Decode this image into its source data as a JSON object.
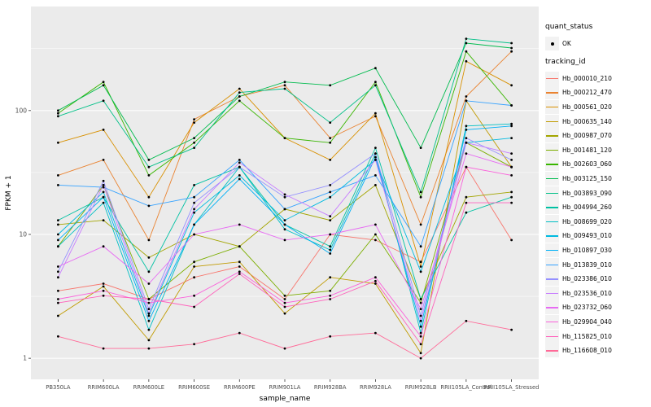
{
  "colors": {
    "panel_bg": "#EBEBEB",
    "grid": "#FFFFFF",
    "point": "#000000",
    "legend_key_bg": "#F2F2F2",
    "tick_label": "#4D4D4D",
    "tick_mark": "#333333"
  },
  "chart_data": {
    "type": "line",
    "title": "",
    "xlabel": "sample_name",
    "ylabel": "FPKM + 1",
    "y_scale": "log10",
    "y_ticks": [
      1,
      10,
      100
    ],
    "y_tick_labels": [
      "1",
      "10",
      "100"
    ],
    "y_minor_ticks_log": [
      0.5,
      1.5,
      2.5
    ],
    "ylim_log": [
      -0.17,
      2.84
    ],
    "grid": true,
    "legend_position": "right",
    "categories": [
      "PB350LA",
      "RRIM600LA",
      "RRIM600LE",
      "RRIM600SE",
      "RRIM600PE",
      "RRIM901LA",
      "RRIM928BA",
      "RRIM928LA",
      "RRIM928LB",
      "RRII105LA_Control",
      "RRII105LA_Stressed"
    ],
    "legend": {
      "quant_status_title": "quant_status",
      "quant_status_items": [
        {
          "label": "OK"
        }
      ],
      "tracking_title": "tracking_id"
    },
    "series": [
      {
        "name": "Hb_000010_210",
        "color": "#F8766D",
        "values": [
          3.5,
          4,
          3,
          4.5,
          5.5,
          3,
          10,
          9,
          6,
          35,
          9
        ]
      },
      {
        "name": "Hb_000212_470",
        "color": "#EA8331",
        "values": [
          30,
          40,
          9,
          85,
          130,
          160,
          60,
          90,
          12,
          130,
          300
        ]
      },
      {
        "name": "Hb_000561_020",
        "color": "#D89000",
        "values": [
          55,
          70,
          20,
          80,
          150,
          60,
          40,
          95,
          5.5,
          250,
          160
        ]
      },
      {
        "name": "Hb_000635_140",
        "color": "#C09B00",
        "values": [
          2.2,
          3.8,
          1.4,
          5.5,
          6,
          2.3,
          4.5,
          4,
          1.1,
          120,
          35
        ]
      },
      {
        "name": "Hb_000987_070",
        "color": "#A3A500",
        "values": [
          12,
          13,
          6.5,
          10,
          8,
          16,
          13,
          25,
          3,
          20,
          22
        ]
      },
      {
        "name": "Hb_001481_120",
        "color": "#7CAE00",
        "values": [
          8,
          25,
          3,
          6,
          8,
          3.2,
          3.5,
          10,
          2.8,
          55,
          35
        ]
      },
      {
        "name": "Hb_002603_060",
        "color": "#39B600",
        "values": [
          95,
          170,
          30,
          55,
          120,
          60,
          55,
          170,
          20,
          300,
          110
        ]
      },
      {
        "name": "Hb_003125_150",
        "color": "#00BB4E",
        "values": [
          100,
          160,
          40,
          60,
          130,
          170,
          160,
          220,
          50,
          350,
          320
        ]
      },
      {
        "name": "Hb_003893_090",
        "color": "#00C087",
        "values": [
          90,
          120,
          35,
          50,
          140,
          150,
          80,
          160,
          22,
          380,
          350
        ]
      },
      {
        "name": "Hb_004994_260",
        "color": "#00C1A3",
        "values": [
          13,
          20,
          5,
          25,
          35,
          12,
          8,
          50,
          3,
          15,
          20
        ]
      },
      {
        "name": "Hb_008699_020",
        "color": "#00BFC4",
        "values": [
          8,
          18,
          1.7,
          12,
          35,
          11,
          7.5,
          45,
          1.6,
          75,
          78
        ]
      },
      {
        "name": "Hb_009493_010",
        "color": "#00BAE0",
        "values": [
          10,
          22,
          2.2,
          15,
          30,
          13,
          20,
          40,
          5,
          55,
          60
        ]
      },
      {
        "name": "Hb_010897_030",
        "color": "#00B0F6",
        "values": [
          9,
          20,
          2.0,
          12,
          28,
          12,
          7,
          42,
          1.8,
          70,
          75
        ]
      },
      {
        "name": "Hb_013839_010",
        "color": "#35A2FF",
        "values": [
          25,
          24,
          17,
          20,
          40,
          16,
          22,
          30,
          8,
          120,
          110
        ]
      },
      {
        "name": "Hb_023386_010",
        "color": "#9590FF",
        "values": [
          5,
          27,
          2.5,
          18,
          35,
          20,
          25,
          45,
          2.2,
          60,
          40
        ]
      },
      {
        "name": "Hb_023536_010",
        "color": "#C77CFF",
        "values": [
          4.5,
          25,
          2.3,
          16,
          38,
          21,
          14,
          40,
          2.0,
          55,
          45
        ]
      },
      {
        "name": "Hb_023732_060",
        "color": "#E76BF3",
        "values": [
          5.5,
          8,
          4,
          10,
          12,
          9,
          10,
          12,
          2.5,
          45,
          35
        ]
      },
      {
        "name": "Hb_029904_040",
        "color": "#FA62DB",
        "values": [
          3,
          3.5,
          2.8,
          3.2,
          5,
          2.8,
          3.2,
          4.5,
          1.5,
          35,
          30
        ]
      },
      {
        "name": "Hb_115825_010",
        "color": "#FF62BC",
        "values": [
          2.8,
          3.2,
          3.0,
          2.6,
          4.8,
          2.6,
          3.0,
          4.2,
          1.3,
          18,
          18
        ]
      },
      {
        "name": "Hb_116608_010",
        "color": "#FF6A98",
        "values": [
          1.5,
          1.2,
          1.2,
          1.3,
          1.6,
          1.2,
          1.5,
          1.6,
          1.0,
          2.0,
          1.7
        ]
      }
    ]
  }
}
